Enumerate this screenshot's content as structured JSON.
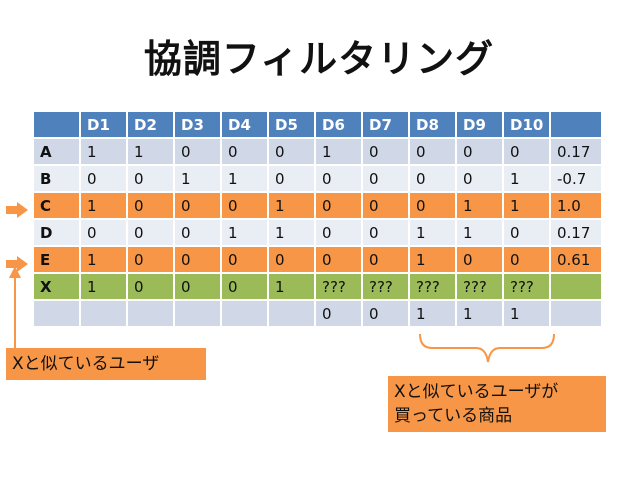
{
  "title": "協調フィルタリング",
  "table": {
    "header": [
      "",
      "D1",
      "D2",
      "D3",
      "D4",
      "D5",
      "D6",
      "D7",
      "D8",
      "D9",
      "D10",
      ""
    ],
    "rows": [
      {
        "label": "A",
        "cells": [
          "1",
          "1",
          "0",
          "0",
          "0",
          "1",
          "0",
          "0",
          "0",
          "0",
          "0.17"
        ],
        "style": "odd"
      },
      {
        "label": "B",
        "cells": [
          "0",
          "0",
          "1",
          "1",
          "0",
          "0",
          "0",
          "0",
          "0",
          "1",
          "-0.7"
        ],
        "style": "even"
      },
      {
        "label": "C",
        "cells": [
          "1",
          "0",
          "0",
          "0",
          "1",
          "0",
          "0",
          "0",
          "1",
          "1",
          "1.0"
        ],
        "style": "orange"
      },
      {
        "label": "D",
        "cells": [
          "0",
          "0",
          "0",
          "1",
          "1",
          "0",
          "0",
          "1",
          "1",
          "0",
          "0.17"
        ],
        "style": "even"
      },
      {
        "label": "E",
        "cells": [
          "1",
          "0",
          "0",
          "0",
          "0",
          "0",
          "0",
          "1",
          "0",
          "0",
          "0.61"
        ],
        "style": "orange"
      },
      {
        "label": "X",
        "cells": [
          "1",
          "0",
          "0",
          "0",
          "1",
          "???",
          "???",
          "???",
          "???",
          "???",
          ""
        ],
        "style": "green"
      },
      {
        "label": "",
        "cells": [
          "",
          "",
          "",
          "",
          "",
          "0",
          "0",
          "1",
          "1",
          "1",
          ""
        ],
        "style": "odd"
      }
    ]
  },
  "callouts": {
    "similar_users": "Xと似ているユーザ",
    "purchased_line1": "Xと似ているユーザが",
    "purchased_line2": "買っている商品"
  },
  "colors": {
    "header_blue": "#4f81bd",
    "row_light": "#d0d8e8",
    "row_lighter": "#e9edf4",
    "highlight_orange": "#f79646",
    "target_green": "#9bbb59"
  }
}
